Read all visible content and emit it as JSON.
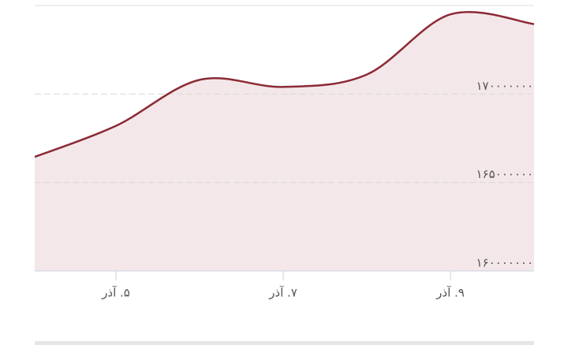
{
  "chart_data": {
    "type": "area",
    "categories": [
      null,
      "۵. آذر",
      null,
      "۷. آذر",
      null,
      "۹. آذر",
      null
    ],
    "values": [
      166400000,
      168200000,
      170800000,
      170400000,
      171100000,
      174500000,
      173950000
    ],
    "color": "#8b2a35",
    "fill": "#f4e7e9",
    "ylim": [
      160000000,
      175000000
    ],
    "yticks": [
      {
        "value": 160000000,
        "label": "۱۶۰۰۰۰۰۰۰"
      },
      {
        "value": 165000000,
        "label": "۱۶۵۰۰۰۰۰۰"
      },
      {
        "value": 170000000,
        "label": "۱۷۰۰۰۰۰۰۰"
      }
    ],
    "grid": true
  }
}
